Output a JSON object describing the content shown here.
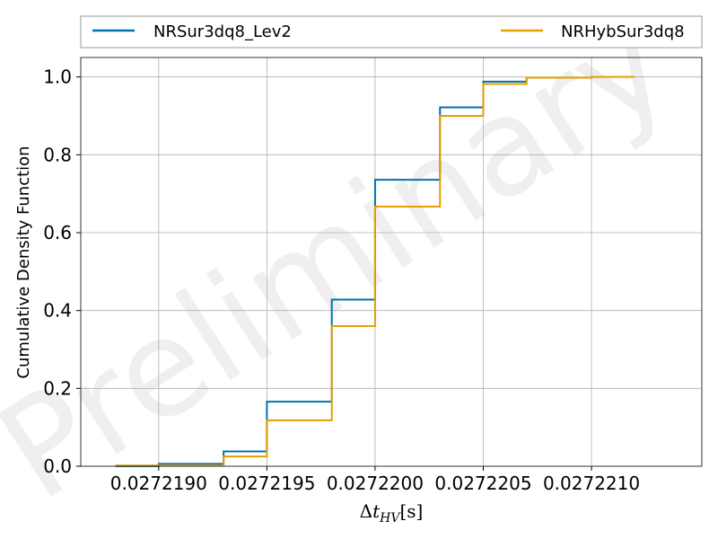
{
  "chart_data": {
    "type": "line",
    "step": true,
    "xlabel": "Δt_HV[s]",
    "xlabel_parts": {
      "main": "Δ",
      "var": "t",
      "sub": "HV",
      "unit": "[s]"
    },
    "ylabel": "Cumulative Density Function",
    "xlim": [
      0.02721864,
      0.02722151
    ],
    "ylim": [
      0.0,
      1.05
    ],
    "x_ticks": [
      0.027219,
      0.0272195,
      0.02722,
      0.0272205,
      0.027221
    ],
    "x_tick_labels": [
      "0.0272190",
      "0.0272195",
      "0.0272200",
      "0.0272205",
      "0.0272210"
    ],
    "y_ticks": [
      0.0,
      0.2,
      0.4,
      0.6,
      0.8,
      1.0
    ],
    "y_tick_labels": [
      "0.0",
      "0.2",
      "0.4",
      "0.6",
      "0.8",
      "1.0"
    ],
    "grid": true,
    "legend_position": "top, outside, two columns",
    "watermark": "Preliminary",
    "series": [
      {
        "name": "NRSur3dq8_Lev2",
        "color": "#0072b2",
        "x": [
          0.0272188,
          0.027219,
          0.0272193,
          0.0272195,
          0.0272198,
          0.02722,
          0.0272203,
          0.0272205,
          0.0272207,
          0.027221
        ],
        "y": [
          0.0,
          0.006,
          0.038,
          0.166,
          0.428,
          0.736,
          0.922,
          0.988,
          0.998,
          1.0
        ]
      },
      {
        "name": "NRHybSur3dq8",
        "color": "#e69f00",
        "x": [
          0.0272188,
          0.0272193,
          0.0272195,
          0.0272198,
          0.02722,
          0.0272203,
          0.0272205,
          0.0272207,
          0.027221,
          0.0272212
        ],
        "y": [
          0.002,
          0.025,
          0.118,
          0.36,
          0.667,
          0.9,
          0.982,
          0.998,
          1.0,
          1.0
        ]
      }
    ]
  }
}
